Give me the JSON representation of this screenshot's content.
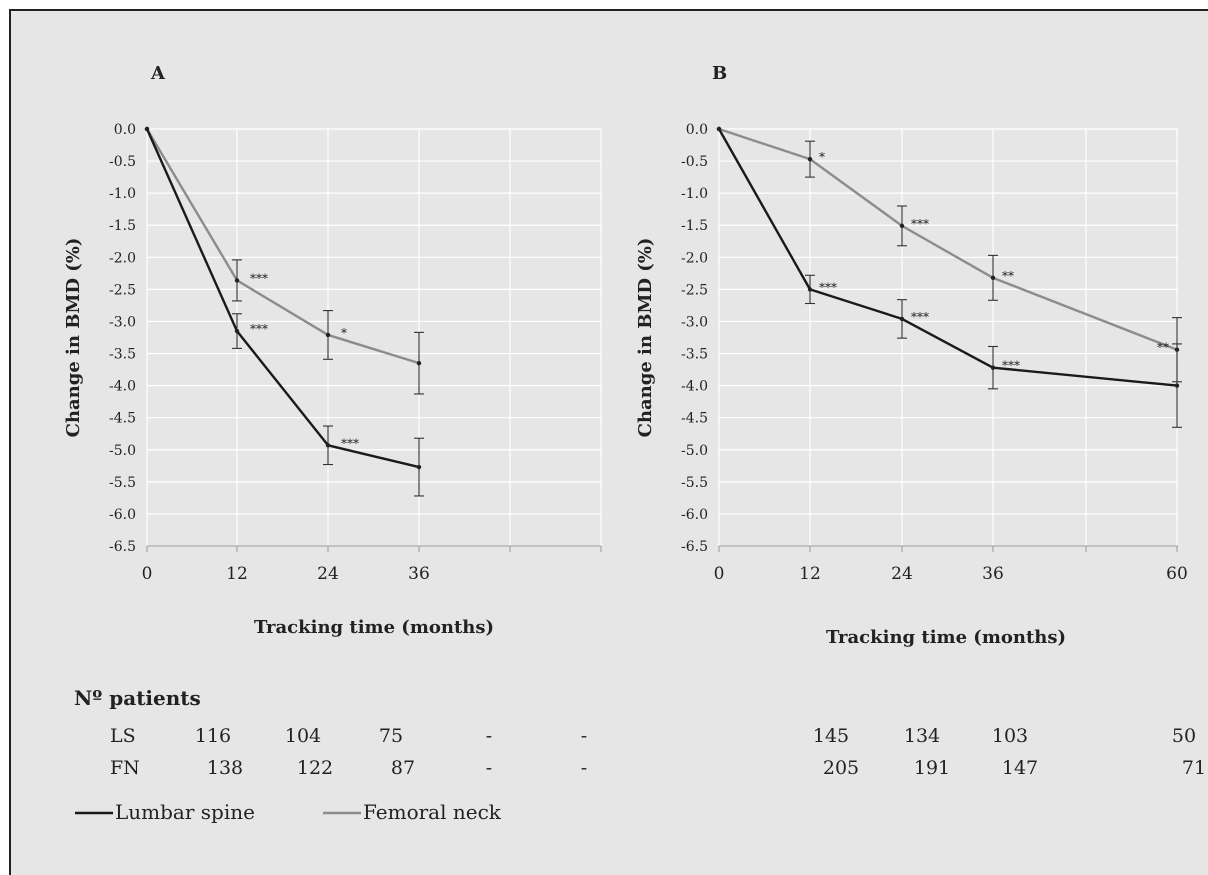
{
  "chart_data": [
    {
      "panel": "A",
      "type": "line",
      "xlabel": "Tracking time (months)",
      "ylabel": "Change in BMD (%)",
      "ylim": [
        -6.5,
        0
      ],
      "ytick_step": 0.5,
      "x_ticks": [
        "0",
        "12",
        "24",
        "36"
      ],
      "grid": true,
      "series": [
        {
          "name": "Lumbar spine",
          "color": "#1a1a1a",
          "points": [
            {
              "x": 0,
              "y": 0.0,
              "err": 0,
              "sig": ""
            },
            {
              "x": 12,
              "y": -3.15,
              "err": 0.27,
              "sig": "***"
            },
            {
              "x": 24,
              "y": -4.93,
              "err": 0.3,
              "sig": "***"
            },
            {
              "x": 36,
              "y": -5.27,
              "err": 0.45,
              "sig": ""
            }
          ]
        },
        {
          "name": "Femoral neck",
          "color": "#8c8c8c",
          "points": [
            {
              "x": 0,
              "y": 0.0,
              "err": 0,
              "sig": ""
            },
            {
              "x": 12,
              "y": -2.36,
              "err": 0.32,
              "sig": "***"
            },
            {
              "x": 24,
              "y": -3.21,
              "err": 0.38,
              "sig": "*"
            },
            {
              "x": 36,
              "y": -3.65,
              "err": 0.48,
              "sig": ""
            }
          ]
        }
      ]
    },
    {
      "panel": "B",
      "type": "line",
      "xlabel": "Tracking time (months)",
      "ylabel": "Change in BMD (%)",
      "ylim": [
        -6.5,
        0
      ],
      "ytick_step": 0.5,
      "x_ticks": [
        "0",
        "12",
        "24",
        "36",
        "60"
      ],
      "grid": true,
      "series": [
        {
          "name": "Lumbar spine",
          "color": "#1a1a1a",
          "points": [
            {
              "x": 0,
              "y": 0.0,
              "err": 0,
              "sig": ""
            },
            {
              "x": 12,
              "y": -2.5,
              "err": 0.22,
              "sig": "***"
            },
            {
              "x": 24,
              "y": -2.96,
              "err": 0.3,
              "sig": "***"
            },
            {
              "x": 36,
              "y": -3.72,
              "err": 0.33,
              "sig": "***"
            },
            {
              "x": 60,
              "y": -4.0,
              "err": 0.65,
              "sig": ""
            }
          ]
        },
        {
          "name": "Femoral neck",
          "color": "#8c8c8c",
          "points": [
            {
              "x": 0,
              "y": 0.0,
              "err": 0,
              "sig": ""
            },
            {
              "x": 12,
              "y": -0.47,
              "err": 0.28,
              "sig": "*"
            },
            {
              "x": 24,
              "y": -1.51,
              "err": 0.31,
              "sig": "***"
            },
            {
              "x": 36,
              "y": -2.32,
              "err": 0.35,
              "sig": "**"
            },
            {
              "x": 60,
              "y": -3.44,
              "err": 0.5,
              "sig": "**"
            }
          ]
        }
      ]
    }
  ],
  "patients": {
    "heading": "Nº patients",
    "rows": [
      {
        "label": "LS",
        "A": [
          "116",
          "104",
          "75",
          "-",
          "-"
        ],
        "B": [
          "145",
          "134",
          "103",
          "50"
        ]
      },
      {
        "label": "FN",
        "A": [
          "138",
          "122",
          "87",
          "-",
          "-"
        ],
        "B": [
          "205",
          "191",
          "147",
          "71"
        ]
      }
    ]
  },
  "legend": [
    {
      "label": "Lumbar spine",
      "color": "#1a1a1a"
    },
    {
      "label": "Femoral neck",
      "color": "#8c8c8c"
    }
  ]
}
